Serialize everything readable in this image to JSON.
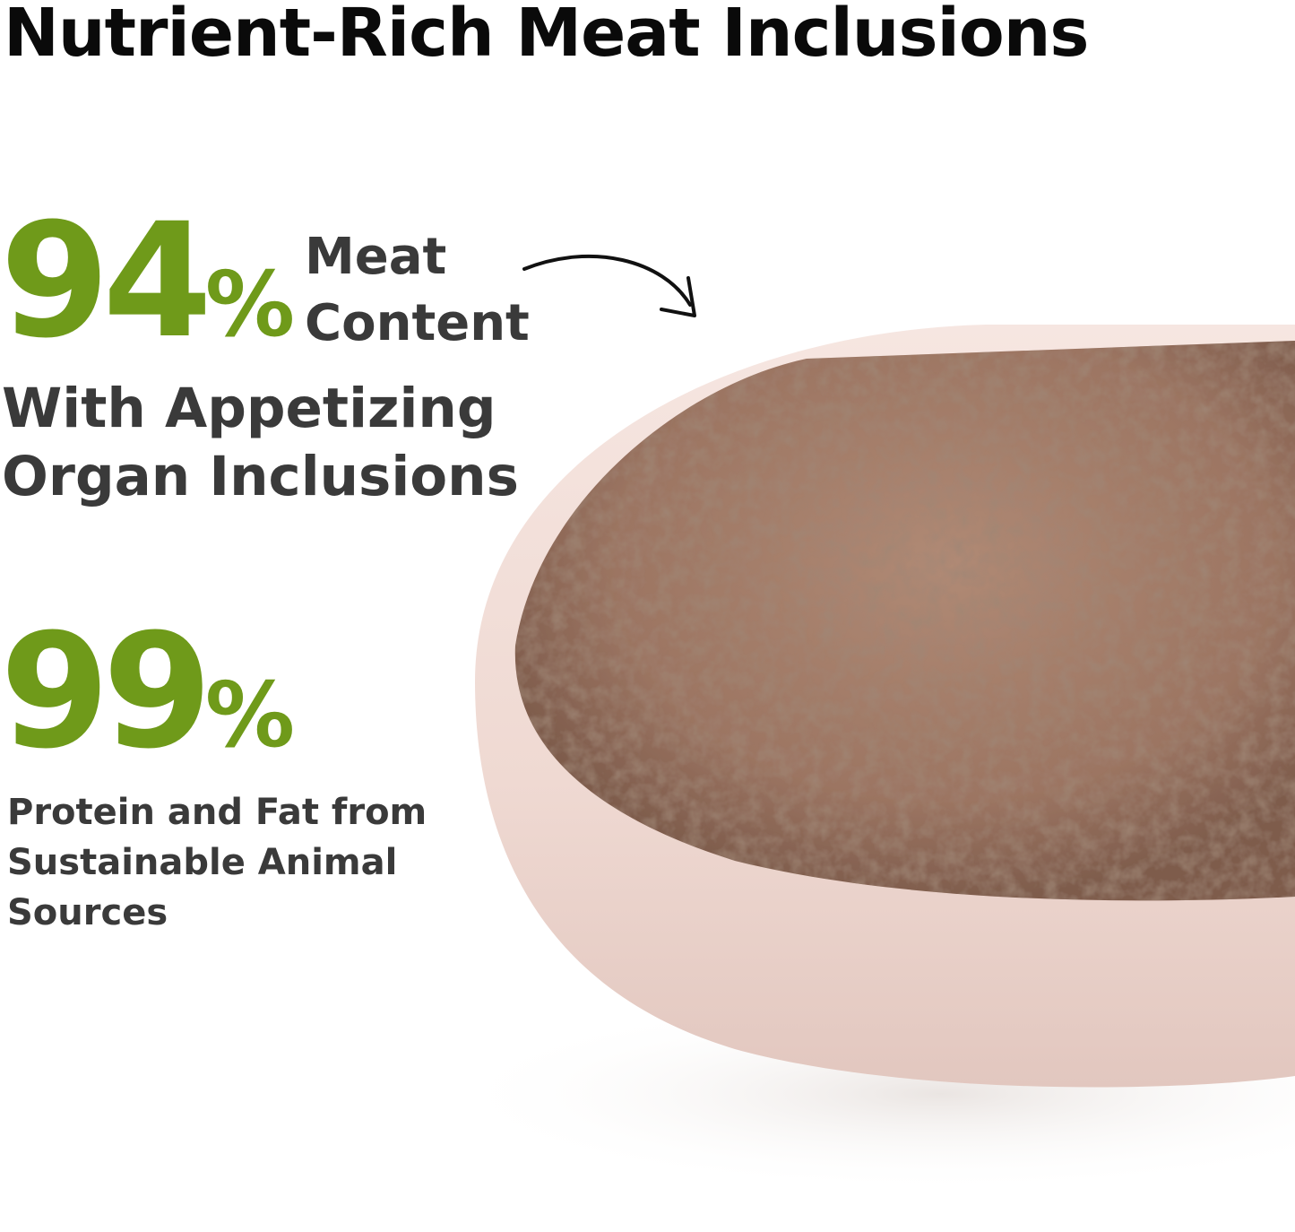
{
  "title": "Nutrient-Rich Meat Inclusions",
  "stat1": {
    "number": "94",
    "percent": "%",
    "label_line1": "Meat",
    "label_line2": "Content"
  },
  "stat1_sub": {
    "line1": "With Appetizing",
    "line2": "Organ Inclusions"
  },
  "stat2": {
    "number": "99",
    "percent": "%",
    "line1": "Protein and Fat from",
    "line2": "Sustainable Animal",
    "line3": "Sources"
  },
  "colors": {
    "accent_green": "#6f9a1a",
    "text_dark": "#3a3a3a",
    "title": "#0a0a0a",
    "bowl": "#f1dcd6",
    "food": "#a07a66"
  },
  "icons": [
    "curved-arrow-icon"
  ]
}
